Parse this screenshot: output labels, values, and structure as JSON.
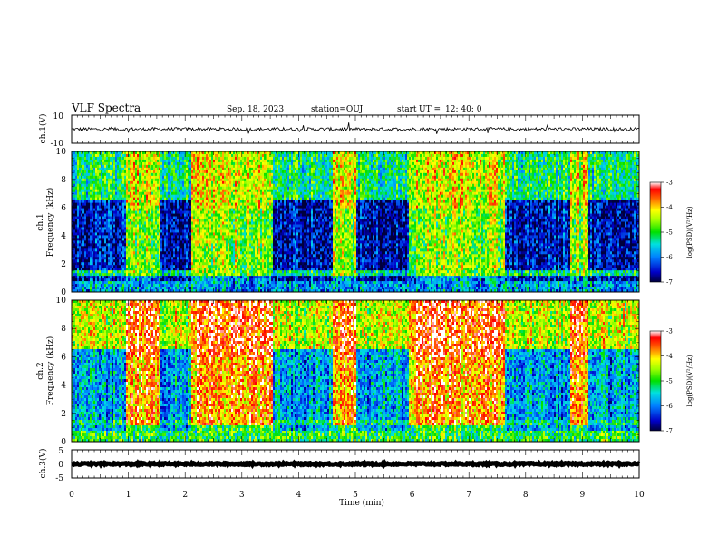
{
  "header": {
    "title": "VLF Spectra",
    "date": "Sep. 18, 2023",
    "station": "station=OUJ",
    "start_label": "start",
    "ut_label": "UT =",
    "start_time": "12: 40: 0"
  },
  "chart_data": [
    {
      "type": "line",
      "name": "ch1-waveform",
      "ylabel": "ch.1(V)",
      "ylim": [
        -10,
        10
      ],
      "yticks": [
        "10",
        "-10"
      ],
      "baseline": 0,
      "noise_amplitude": 1.2
    },
    {
      "type": "heatmap",
      "name": "ch1-spectrogram",
      "ylabel": "ch.1\nFrequency (kHz)",
      "ylim": [
        0,
        10
      ],
      "yticks": [
        "0",
        "2",
        "4",
        "6",
        "8",
        "10"
      ],
      "colorbar": {
        "label": "log(PSD)(V²/Hz)",
        "range": [
          -7,
          -3
        ],
        "ticks": [
          "-3",
          "-4",
          "-5",
          "-6",
          "-7"
        ]
      },
      "active_intervals": [
        [
          0.95,
          1.55
        ],
        [
          2.1,
          3.55
        ],
        [
          4.6,
          5.0
        ],
        [
          5.95,
          7.65
        ],
        [
          8.8,
          9.1
        ]
      ],
      "active_level": -4.6,
      "quiet_level": -6.6
    },
    {
      "type": "heatmap",
      "name": "ch2-spectrogram",
      "ylabel": "ch.2\nFrequency (kHz)",
      "ylim": [
        0,
        10
      ],
      "yticks": [
        "0",
        "2",
        "4",
        "6",
        "8",
        "10"
      ],
      "colorbar": {
        "label": "log(PSD)(V²/Hz)",
        "range": [
          -7,
          -3
        ],
        "ticks": [
          "-3",
          "-4",
          "-5",
          "-6",
          "-7"
        ]
      },
      "active_intervals": [
        [
          0.95,
          1.55
        ],
        [
          2.1,
          3.55
        ],
        [
          4.6,
          5.0
        ],
        [
          5.95,
          7.65
        ],
        [
          8.8,
          9.1
        ]
      ],
      "active_level": -3.8,
      "quiet_level": -5.8
    },
    {
      "type": "line",
      "name": "ch3-waveform",
      "ylabel": "ch.3(V)",
      "ylim": [
        -5,
        5
      ],
      "yticks": [
        "5",
        "0",
        "-5"
      ],
      "baseline": 0,
      "noise_amplitude": 0.3
    }
  ],
  "xaxis": {
    "xlabel": "Time (min)",
    "xlim": [
      0,
      10
    ],
    "ticks": [
      "0",
      "1",
      "2",
      "3",
      "4",
      "5",
      "6",
      "7",
      "8",
      "9",
      "10"
    ]
  }
}
